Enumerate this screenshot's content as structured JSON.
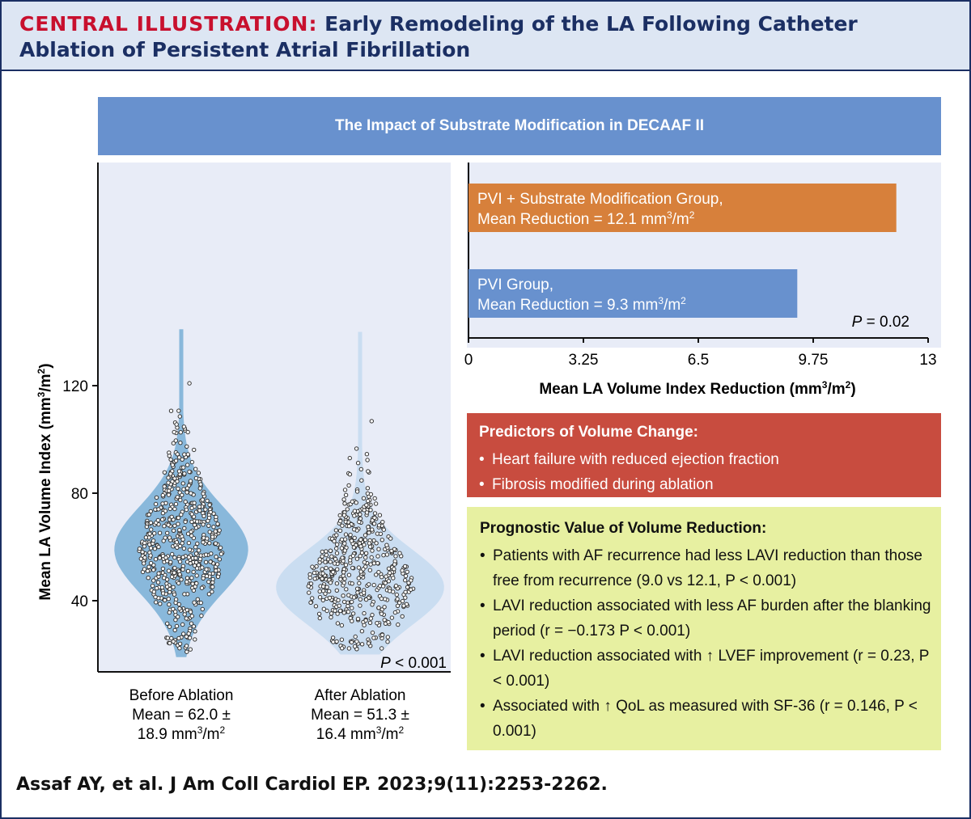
{
  "header": {
    "label": "CENTRAL ILLUSTRATION:",
    "title": "Early Remodeling of the LA Following Catheter Ablation of Persistent Atrial Fibrillation"
  },
  "banner": "The Impact of Substrate Modification in DECAAF II",
  "chart_data": [
    {
      "type": "violin",
      "ylabel": "Mean LA Volume Index (mm³/m²)",
      "yticks": [
        40,
        80,
        120
      ],
      "ylim": [
        18,
        145
      ],
      "p_value": "< 0.001",
      "p_label": "P",
      "groups": [
        {
          "name": "Before Ablation",
          "caption": [
            "Before Ablation",
            "Mean = 62.0 ±",
            "18.9 mm³/m²"
          ],
          "mean": 62.0,
          "sd": 18.9,
          "min": 19,
          "max": 141,
          "mode": 59,
          "color": "#7eb2d7",
          "point_count": 560
        },
        {
          "name": "After Ablation",
          "caption": [
            "After Ablation",
            "Mean = 51.3 ±",
            "16.4 mm³/m²"
          ],
          "mean": 51.3,
          "sd": 16.4,
          "min": 20,
          "max": 140,
          "mode": 45,
          "color": "#c7dbef",
          "point_count": 520
        }
      ]
    },
    {
      "type": "bar",
      "orientation": "horizontal",
      "xlabel": "Mean LA Volume Index Reduction (mm³/m²)",
      "xticks": [
        "0",
        "3.25",
        "6.5",
        "9.75",
        "13"
      ],
      "xlim": [
        0,
        13
      ],
      "p_value": "= 0.02",
      "p_label": "P",
      "bars": [
        {
          "label_line1": "PVI + Substrate Modification Group,",
          "label_line2": "Mean Reduction = 12.1 mm³/m²",
          "value": 12.1,
          "color": "#d7803b"
        },
        {
          "label_line1": "PVI Group,",
          "label_line2": "Mean Reduction = 9.3 mm³/m²",
          "value": 9.3,
          "color": "#6891ce"
        }
      ]
    }
  ],
  "predictors": {
    "title": "Predictors of Volume Change:",
    "items": [
      "Heart failure with reduced ejection fraction",
      "Fibrosis modified during ablation"
    ]
  },
  "prognostic": {
    "title": "Prognostic Value of Volume Reduction:",
    "items": [
      "Patients with AF recurrence had less LAVI reduction than those free from recurrence (9.0 vs 12.1, P < 0.001)",
      "LAVI reduction associated with less AF burden after the blanking period (r = −0.173 P < 0.001)",
      "LAVI reduction associated with ↑ LVEF improvement (r = 0.23, P < 0.001)",
      "Associated with ↑ QoL as measured with SF-36 (r = 0.146, P < 0.001)"
    ]
  },
  "citation": "Assaf AY, et al. J Am Coll Cardiol EP. 2023;9(11):2253-2262.",
  "colors": {
    "navy": "#1b2f63",
    "red": "#c8102e",
    "banner": "#6891ce",
    "predictors": "#c84c3f",
    "prognostic": "#e7f0a1",
    "panel": "#e8ecf7"
  }
}
